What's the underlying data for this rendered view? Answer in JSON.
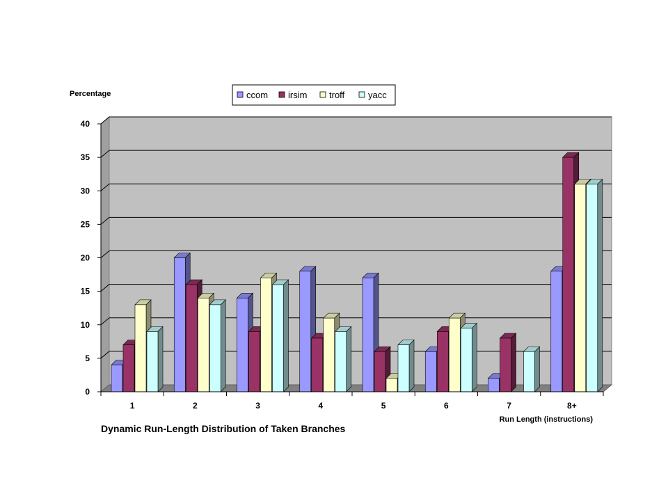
{
  "chart_data": {
    "type": "bar",
    "title": "Dynamic Run-Length Distribution of Taken Branches",
    "xlabel": "Run Length (instructions)",
    "ylabel": "Percentage",
    "categories": [
      "1",
      "2",
      "3",
      "4",
      "5",
      "6",
      "7",
      "8+"
    ],
    "ylim": [
      0,
      40
    ],
    "yticks": [
      "0",
      "5",
      "10",
      "15",
      "20",
      "25",
      "30",
      "35",
      "40"
    ],
    "grid": true,
    "legend_position": "top-center",
    "series": [
      {
        "name": "ccom",
        "color": "#9999ff",
        "values": [
          4,
          20,
          14,
          18,
          17,
          6,
          2,
          18
        ]
      },
      {
        "name": "irsim",
        "color": "#993366",
        "values": [
          7,
          16,
          9,
          8,
          6,
          9,
          8,
          35
        ]
      },
      {
        "name": "troff",
        "color": "#ffffcc",
        "values": [
          13,
          14,
          17,
          11,
          2,
          11,
          0,
          31
        ]
      },
      {
        "name": "yacc",
        "color": "#ccffff",
        "values": [
          9,
          13,
          16,
          9,
          7,
          9.5,
          6,
          31
        ]
      }
    ]
  }
}
